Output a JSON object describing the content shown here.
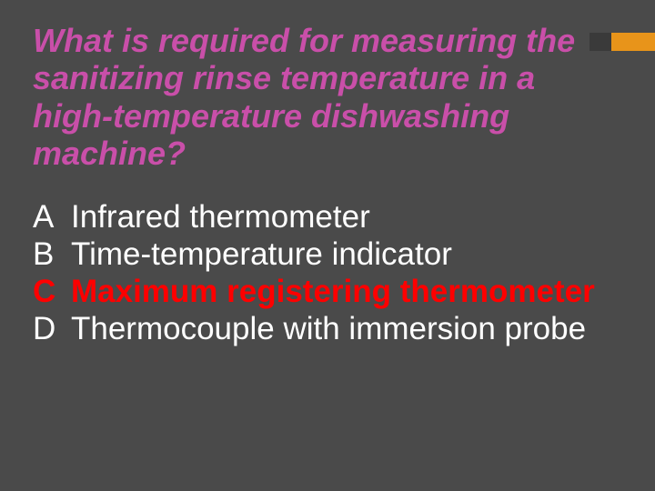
{
  "colors": {
    "background": "#4a4a4a",
    "question": "#c94fa9",
    "answer_default": "#ffffff",
    "answer_correct": "#ff0000",
    "accent_dark": "#3a3a3a",
    "accent_orange": "#e8941a"
  },
  "typography": {
    "question_fontsize": 36,
    "answer_fontsize": 35,
    "font_family": "Arial"
  },
  "question": "What is required for measuring the sanitizing rinse temperature in a high-temperature dishwashing machine?",
  "answers": [
    {
      "letter": "A",
      "text": "Infrared thermometer",
      "correct": false
    },
    {
      "letter": "B",
      "text": "Time-temperature indicator",
      "correct": false
    },
    {
      "letter": "C",
      "text": "Maximum registering thermometer",
      "correct": true
    },
    {
      "letter": "D",
      "text": "Thermocouple with immersion probe",
      "correct": false
    }
  ]
}
